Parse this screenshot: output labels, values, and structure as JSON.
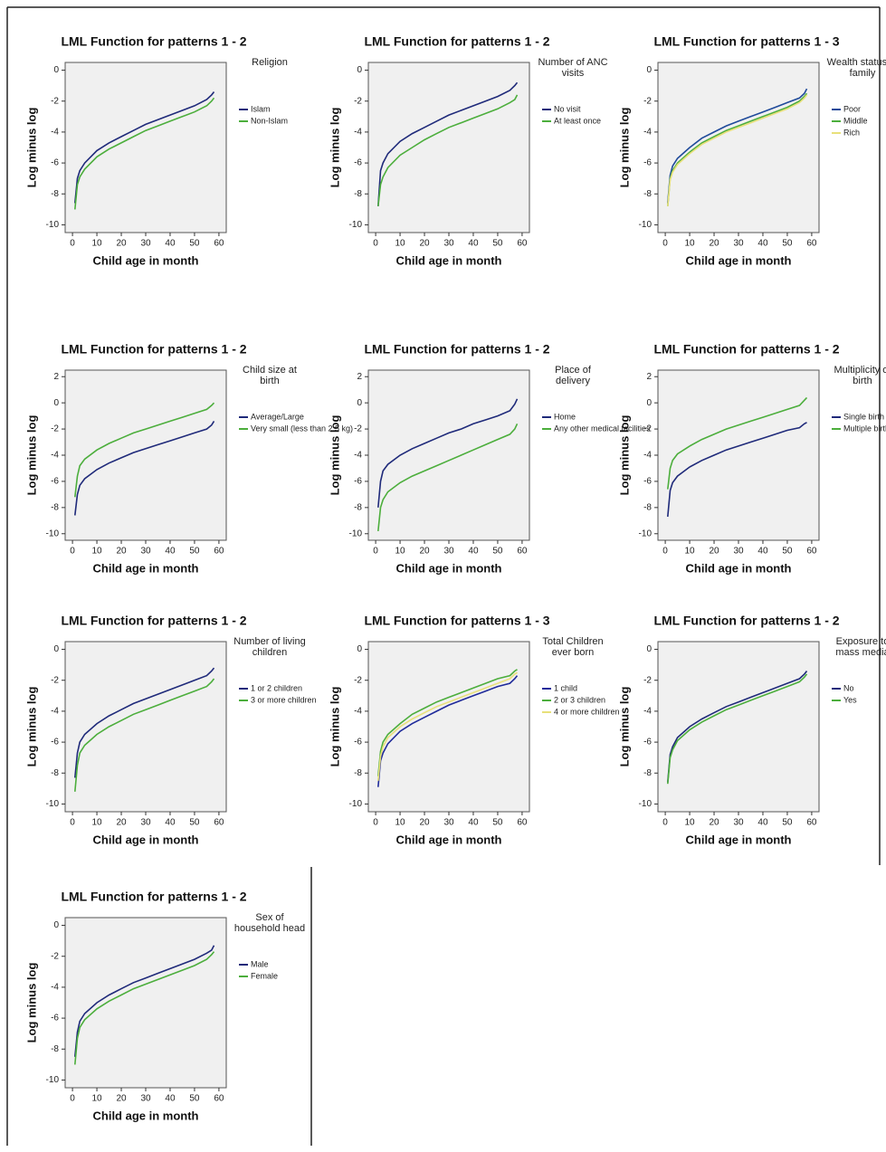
{
  "chart_data": [
    {
      "type": "line",
      "title": "LML Function for patterns 1 - 2",
      "legend_title": "Religion",
      "x_label": "Child age in month",
      "y_label": "Log minus log",
      "x": [
        1,
        2,
        3,
        5,
        10,
        15,
        20,
        25,
        30,
        35,
        40,
        45,
        50,
        55,
        57,
        58
      ],
      "xlim": [
        -3,
        63
      ],
      "xticks": [
        0,
        10,
        20,
        30,
        40,
        50,
        60
      ],
      "ylim": [
        -10.5,
        0.5
      ],
      "yticks": [
        -10,
        -8,
        -6,
        -4,
        -2,
        0
      ],
      "series": [
        {
          "name": "Islam",
          "color": "#1f2a7a",
          "values": [
            -8.6,
            -7.0,
            -6.5,
            -6.0,
            -5.2,
            -4.7,
            -4.3,
            -3.9,
            -3.5,
            -3.2,
            -2.9,
            -2.6,
            -2.3,
            -1.9,
            -1.6,
            -1.4
          ]
        },
        {
          "name": "Non-Islam",
          "color": "#4cae3c",
          "values": [
            -9.0,
            -7.4,
            -6.9,
            -6.4,
            -5.6,
            -5.1,
            -4.7,
            -4.3,
            -3.9,
            -3.6,
            -3.3,
            -3.0,
            -2.7,
            -2.3,
            -2.0,
            -1.8
          ]
        }
      ]
    },
    {
      "type": "line",
      "title": "LML Function for patterns 1 - 2",
      "legend_title": "Number of ANC visits",
      "x_label": "Child age in month",
      "y_label": "Log minus log",
      "x": [
        1,
        2,
        3,
        5,
        10,
        15,
        20,
        25,
        30,
        35,
        40,
        45,
        50,
        55,
        57,
        58
      ],
      "xlim": [
        -3,
        63
      ],
      "xticks": [
        0,
        10,
        20,
        30,
        40,
        50,
        60
      ],
      "ylim": [
        -10.5,
        0.5
      ],
      "yticks": [
        -10,
        -8,
        -6,
        -4,
        -2,
        0
      ],
      "series": [
        {
          "name": "No visit",
          "color": "#1f2a7a",
          "values": [
            -8.8,
            -6.5,
            -6.0,
            -5.4,
            -4.6,
            -4.1,
            -3.7,
            -3.3,
            -2.9,
            -2.6,
            -2.3,
            -2.0,
            -1.7,
            -1.3,
            -1.0,
            -0.8
          ]
        },
        {
          "name": "At least once",
          "color": "#4cae3c",
          "values": [
            -8.8,
            -7.4,
            -6.9,
            -6.3,
            -5.5,
            -5.0,
            -4.5,
            -4.1,
            -3.7,
            -3.4,
            -3.1,
            -2.8,
            -2.5,
            -2.1,
            -1.9,
            -1.6
          ]
        }
      ]
    },
    {
      "type": "line",
      "title": "LML Function for patterns 1 - 3",
      "legend_title": "Wealth status of family",
      "x_label": "Child age in month",
      "y_label": "Log minus log",
      "x": [
        1,
        2,
        3,
        5,
        10,
        15,
        20,
        25,
        30,
        35,
        40,
        45,
        50,
        55,
        57,
        58
      ],
      "xlim": [
        -3,
        63
      ],
      "xticks": [
        0,
        10,
        20,
        30,
        40,
        50,
        60
      ],
      "ylim": [
        -10.5,
        0.5
      ],
      "yticks": [
        -10,
        -8,
        -6,
        -4,
        -2,
        0
      ],
      "series": [
        {
          "name": "Poor",
          "color": "#1f4a9a",
          "values": [
            -8.6,
            -6.8,
            -6.2,
            -5.7,
            -5.0,
            -4.4,
            -4.0,
            -3.6,
            -3.3,
            -3.0,
            -2.7,
            -2.4,
            -2.1,
            -1.8,
            -1.5,
            -1.2
          ]
        },
        {
          "name": "Middle",
          "color": "#4cae3c",
          "values": [
            -8.8,
            -7.0,
            -6.5,
            -6.0,
            -5.3,
            -4.7,
            -4.3,
            -3.9,
            -3.6,
            -3.3,
            -3.0,
            -2.7,
            -2.4,
            -2.0,
            -1.7,
            -1.5
          ]
        },
        {
          "name": "Rich",
          "color": "#e8e07a",
          "values": [
            -8.8,
            -7.1,
            -6.6,
            -6.1,
            -5.4,
            -4.8,
            -4.4,
            -4.0,
            -3.7,
            -3.4,
            -3.1,
            -2.8,
            -2.5,
            -2.1,
            -1.8,
            -1.6
          ]
        }
      ]
    },
    {
      "type": "line",
      "title": "LML Function for patterns 1 - 2",
      "legend_title": "Child size at birth",
      "x_label": "Child age in month",
      "y_label": "Log minus log",
      "x": [
        1,
        2,
        3,
        5,
        10,
        15,
        20,
        25,
        30,
        35,
        40,
        45,
        50,
        55,
        57,
        58
      ],
      "xlim": [
        -3,
        63
      ],
      "xticks": [
        0,
        10,
        20,
        30,
        40,
        50,
        60
      ],
      "ylim": [
        -10.5,
        2.5
      ],
      "yticks": [
        -10,
        -8,
        -6,
        -4,
        -2,
        0,
        2
      ],
      "series": [
        {
          "name": "Average/Large",
          "color": "#1f2a7a",
          "values": [
            -8.6,
            -7.0,
            -6.3,
            -5.8,
            -5.1,
            -4.6,
            -4.2,
            -3.8,
            -3.5,
            -3.2,
            -2.9,
            -2.6,
            -2.3,
            -2.0,
            -1.7,
            -1.4
          ]
        },
        {
          "name": "Very small (less than 2.5 kg)",
          "color": "#4cae3c",
          "values": [
            -7.2,
            -5.6,
            -4.8,
            -4.3,
            -3.6,
            -3.1,
            -2.7,
            -2.3,
            -2.0,
            -1.7,
            -1.4,
            -1.1,
            -0.8,
            -0.5,
            -0.2,
            0.0
          ]
        }
      ]
    },
    {
      "type": "line",
      "title": "LML Function for patterns 1 - 2",
      "legend_title": "Place of delivery",
      "x_label": "Child age in month",
      "y_label": "Log minus log",
      "x": [
        1,
        2,
        3,
        5,
        10,
        15,
        20,
        25,
        30,
        35,
        40,
        45,
        50,
        55,
        57,
        58
      ],
      "xlim": [
        -3,
        63
      ],
      "xticks": [
        0,
        10,
        20,
        30,
        40,
        50,
        60
      ],
      "ylim": [
        -10.5,
        2.5
      ],
      "yticks": [
        -10,
        -8,
        -6,
        -4,
        -2,
        0,
        2
      ],
      "series": [
        {
          "name": "Home",
          "color": "#1f2a7a",
          "values": [
            -8.0,
            -6.0,
            -5.2,
            -4.7,
            -4.0,
            -3.5,
            -3.1,
            -2.7,
            -2.3,
            -2.0,
            -1.6,
            -1.3,
            -1.0,
            -0.6,
            -0.1,
            0.3
          ]
        },
        {
          "name": "Any other medical facilities",
          "color": "#4cae3c",
          "values": [
            -9.8,
            -8.0,
            -7.4,
            -6.8,
            -6.1,
            -5.6,
            -5.2,
            -4.8,
            -4.4,
            -4.0,
            -3.6,
            -3.2,
            -2.8,
            -2.4,
            -2.0,
            -1.6
          ]
        }
      ]
    },
    {
      "type": "line",
      "title": "LML Function for patterns 1 - 2",
      "legend_title": "Multiplicity of birth",
      "x_label": "Child age in month",
      "y_label": "Log minus log",
      "x": [
        1,
        2,
        3,
        5,
        10,
        15,
        20,
        25,
        30,
        35,
        40,
        45,
        50,
        55,
        57,
        58
      ],
      "xlim": [
        -3,
        63
      ],
      "xticks": [
        0,
        10,
        20,
        30,
        40,
        50,
        60
      ],
      "ylim": [
        -10.5,
        2.5
      ],
      "yticks": [
        -10,
        -8,
        -6,
        -4,
        -2,
        0,
        2
      ],
      "series": [
        {
          "name": "Single birth",
          "color": "#1f2a7a",
          "values": [
            -8.7,
            -6.7,
            -6.1,
            -5.6,
            -4.9,
            -4.4,
            -4.0,
            -3.6,
            -3.3,
            -3.0,
            -2.7,
            -2.4,
            -2.1,
            -1.9,
            -1.6,
            -1.5
          ]
        },
        {
          "name": "Multiple birth",
          "color": "#4cae3c",
          "values": [
            -6.6,
            -5.0,
            -4.4,
            -3.9,
            -3.3,
            -2.8,
            -2.4,
            -2.0,
            -1.7,
            -1.4,
            -1.1,
            -0.8,
            -0.5,
            -0.2,
            0.2,
            0.4
          ]
        }
      ]
    },
    {
      "type": "line",
      "title": "LML Function for patterns 1 - 2",
      "legend_title": "Number of living children",
      "x_label": "Child age in month",
      "y_label": "Log minus log",
      "x": [
        1,
        2,
        3,
        5,
        10,
        15,
        20,
        25,
        30,
        35,
        40,
        45,
        50,
        55,
        57,
        58
      ],
      "xlim": [
        -3,
        63
      ],
      "xticks": [
        0,
        10,
        20,
        30,
        40,
        50,
        60
      ],
      "ylim": [
        -10.5,
        0.5
      ],
      "yticks": [
        -10,
        -8,
        -6,
        -4,
        -2,
        0
      ],
      "series": [
        {
          "name": "1 or 2 children",
          "color": "#1f2a7a",
          "values": [
            -8.3,
            -6.7,
            -6.0,
            -5.5,
            -4.8,
            -4.3,
            -3.9,
            -3.5,
            -3.2,
            -2.9,
            -2.6,
            -2.3,
            -2.0,
            -1.7,
            -1.4,
            -1.2
          ]
        },
        {
          "name": "3 or more children",
          "color": "#4cae3c",
          "values": [
            -9.2,
            -7.5,
            -6.7,
            -6.2,
            -5.5,
            -5.0,
            -4.6,
            -4.2,
            -3.9,
            -3.6,
            -3.3,
            -3.0,
            -2.7,
            -2.4,
            -2.1,
            -1.9
          ]
        }
      ]
    },
    {
      "type": "line",
      "title": "LML Function for patterns 1 - 3",
      "legend_title": "Total Children ever born",
      "x_label": "Child age in month",
      "y_label": "Log minus log",
      "x": [
        1,
        2,
        3,
        5,
        10,
        15,
        20,
        25,
        30,
        35,
        40,
        45,
        50,
        55,
        57,
        58
      ],
      "xlim": [
        -3,
        63
      ],
      "xticks": [
        0,
        10,
        20,
        30,
        40,
        50,
        60
      ],
      "ylim": [
        -10.5,
        0.5
      ],
      "yticks": [
        -10,
        -8,
        -6,
        -4,
        -2,
        0
      ],
      "series": [
        {
          "name": "1 child",
          "color": "#1f2a9a",
          "values": [
            -8.9,
            -7.2,
            -6.7,
            -6.1,
            -5.3,
            -4.8,
            -4.4,
            -4.0,
            -3.6,
            -3.3,
            -3.0,
            -2.7,
            -2.4,
            -2.2,
            -1.9,
            -1.7
          ]
        },
        {
          "name": "2 or 3 children",
          "color": "#4cae3c",
          "values": [
            -8.2,
            -6.6,
            -6.0,
            -5.5,
            -4.8,
            -4.2,
            -3.8,
            -3.4,
            -3.1,
            -2.8,
            -2.5,
            -2.2,
            -1.9,
            -1.7,
            -1.4,
            -1.3
          ]
        },
        {
          "name": "4 or more children",
          "color": "#e8e07a",
          "values": [
            -8.5,
            -6.9,
            -6.3,
            -5.7,
            -5.0,
            -4.5,
            -4.1,
            -3.7,
            -3.4,
            -3.1,
            -2.8,
            -2.5,
            -2.2,
            -1.9,
            -1.6,
            -1.5
          ]
        }
      ]
    },
    {
      "type": "line",
      "title": "LML Function for patterns 1 - 2",
      "legend_title": "Exposure to mass media",
      "x_label": "Child age in month",
      "y_label": "Log minus log",
      "x": [
        1,
        2,
        3,
        5,
        10,
        15,
        20,
        25,
        30,
        35,
        40,
        45,
        50,
        55,
        57,
        58
      ],
      "xlim": [
        -3,
        63
      ],
      "xticks": [
        0,
        10,
        20,
        30,
        40,
        50,
        60
      ],
      "ylim": [
        -10.5,
        0.5
      ],
      "yticks": [
        -10,
        -8,
        -6,
        -4,
        -2,
        0
      ],
      "series": [
        {
          "name": "No",
          "color": "#1f2a7a",
          "values": [
            -8.6,
            -6.8,
            -6.3,
            -5.7,
            -5.0,
            -4.5,
            -4.1,
            -3.7,
            -3.4,
            -3.1,
            -2.8,
            -2.5,
            -2.2,
            -1.9,
            -1.6,
            -1.4
          ]
        },
        {
          "name": "Yes",
          "color": "#4cae3c",
          "values": [
            -8.7,
            -7.0,
            -6.5,
            -5.9,
            -5.2,
            -4.7,
            -4.3,
            -3.9,
            -3.6,
            -3.3,
            -3.0,
            -2.7,
            -2.4,
            -2.1,
            -1.8,
            -1.6
          ]
        }
      ]
    },
    {
      "type": "line",
      "title": "LML Function for patterns 1 - 2",
      "legend_title": "Sex of household head",
      "x_label": "Child age in month",
      "y_label": "Log minus log",
      "x": [
        1,
        2,
        3,
        5,
        10,
        15,
        20,
        25,
        30,
        35,
        40,
        45,
        50,
        55,
        57,
        58
      ],
      "xlim": [
        -3,
        63
      ],
      "xticks": [
        0,
        10,
        20,
        30,
        40,
        50,
        60
      ],
      "ylim": [
        -10.5,
        0.5
      ],
      "yticks": [
        -10,
        -8,
        -6,
        -4,
        -2,
        0
      ],
      "series": [
        {
          "name": "Male",
          "color": "#1f2a7a",
          "values": [
            -8.5,
            -6.9,
            -6.2,
            -5.7,
            -5.0,
            -4.5,
            -4.1,
            -3.7,
            -3.4,
            -3.1,
            -2.8,
            -2.5,
            -2.2,
            -1.8,
            -1.6,
            -1.3
          ]
        },
        {
          "name": "Female",
          "color": "#4cae3c",
          "values": [
            -9.0,
            -7.3,
            -6.6,
            -6.1,
            -5.4,
            -4.9,
            -4.5,
            -4.1,
            -3.8,
            -3.5,
            -3.2,
            -2.9,
            -2.6,
            -2.2,
            -1.9,
            -1.7
          ]
        }
      ]
    }
  ]
}
